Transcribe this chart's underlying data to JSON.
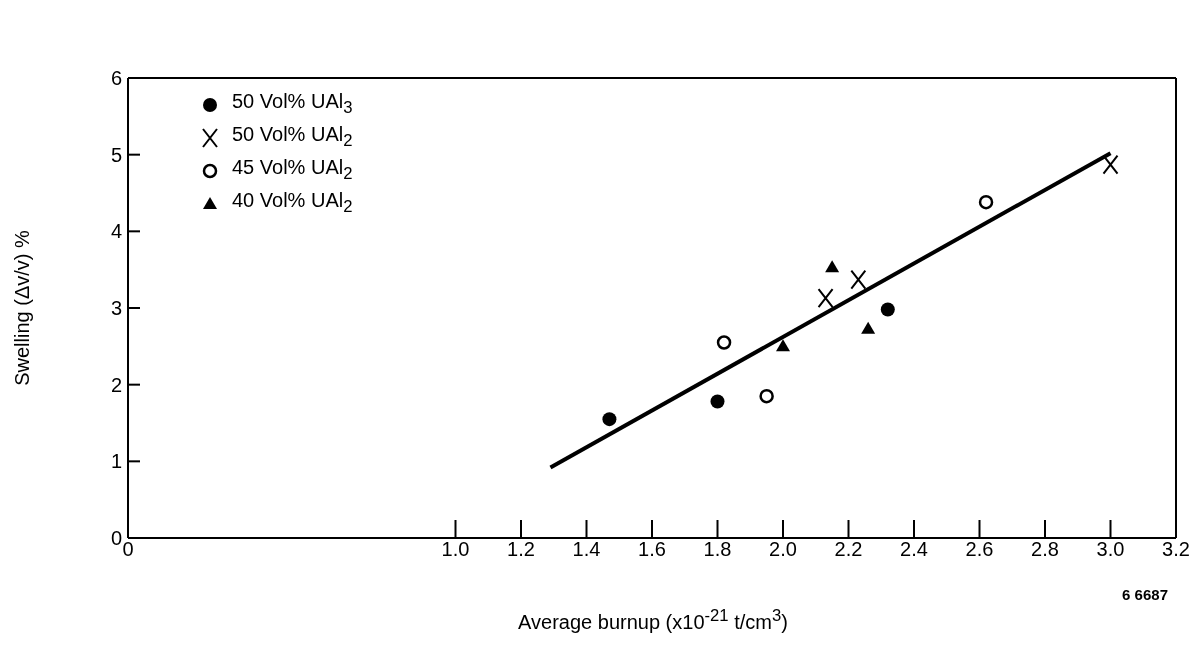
{
  "chart_data": {
    "type": "scatter",
    "xlabel": "Average burnup (x10$^{-21}$ t/cm$^{3}$)",
    "ylabel": "Swelling (Δv/v) %",
    "annotations": [
      "6 6687"
    ],
    "xlim": [
      0,
      3.2
    ],
    "xticks": [
      0,
      {
        "value": 1.0,
        "label": "1.0"
      },
      1.2,
      1.4,
      1.6,
      1.8,
      {
        "value": 2.0,
        "label": "2.0"
      },
      2.2,
      2.4,
      2.6,
      2.8,
      {
        "value": 3.0,
        "label": "3.0"
      },
      3.2
    ],
    "ylim": [
      0,
      6
    ],
    "yticks": [
      0,
      1,
      2,
      3,
      4,
      5,
      6
    ],
    "legend": "top left",
    "series": [
      {
        "name": "50 Vol% UAl$_{3}$",
        "color": "#000000",
        "marker": "circle",
        "x": [
          1.47,
          1.8,
          2.32
        ],
        "values": [
          1.55,
          1.78,
          2.98
        ]
      },
      {
        "name": "50 Vol% UAl$_{2}$",
        "color": "#000000",
        "marker": "cross",
        "x": [
          2.13,
          2.23,
          3.0
        ],
        "values": [
          3.13,
          3.37,
          4.87
        ]
      },
      {
        "name": "45 Vol% UAl$_{2}$",
        "color": "#000000",
        "marker": "circle-open",
        "x": [
          1.82,
          1.95,
          2.62
        ],
        "values": [
          2.55,
          1.85,
          4.38
        ]
      },
      {
        "name": "40 Vol% UAl$_{2}$",
        "color": "#000000",
        "marker": "triangle",
        "x": [
          2.0,
          2.15,
          2.26
        ],
        "values": [
          2.5,
          3.53,
          2.73
        ]
      },
      {
        "type": "line",
        "color": "#000000",
        "line_style": "solid",
        "x": [
          1.29,
          3.0
        ],
        "values": [
          0.92,
          5.02
        ]
      }
    ]
  }
}
